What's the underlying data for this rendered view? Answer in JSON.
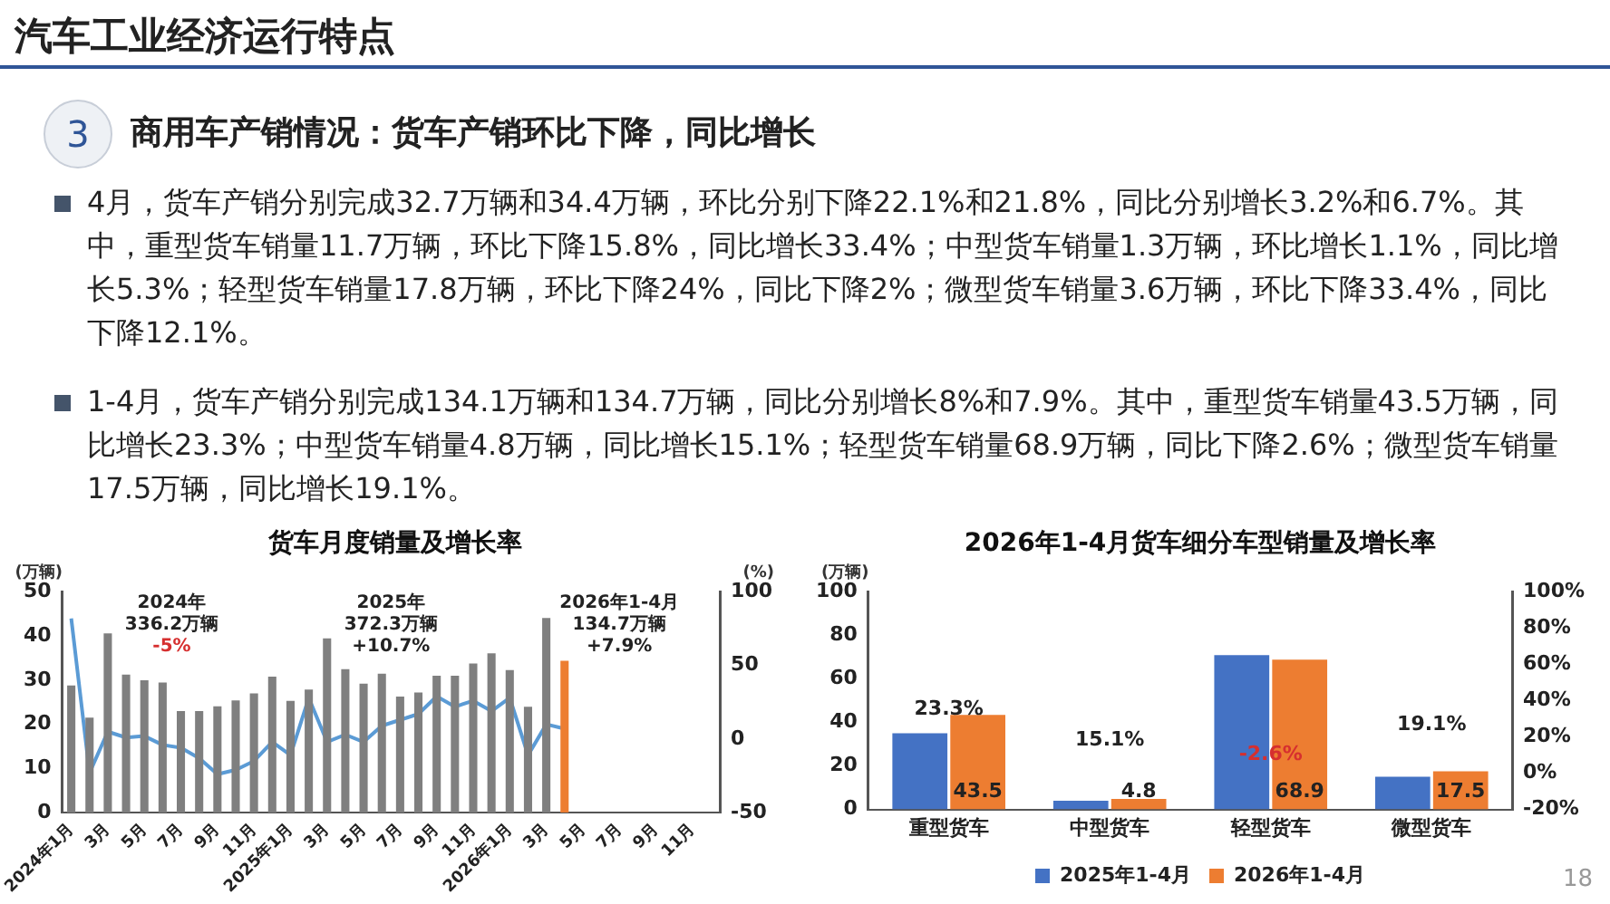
{
  "chart_data": [
    {
      "type": "other",
      "title": "汽车工业经济运行特点",
      "subtitle": "商用车产销情况：货车产销环比下降，同比增长",
      "annotations": [
        "3",
        "4月，货车产销分别完成32.7万辆和34.4万辆，环比分别下降22.1%和21.8%，同比分别增长3.2%和6.7%。其中，重型货车销量11.7万辆，环比下降15.8%，同比增长33.4%；中型货车销量1.3万辆，环比增长1.1%，同比增长5.3%；轻型货车销量17.8万辆，环比下降24%，同比下降2%；微型货车销量3.6万辆，环比下降33.4%，同比下降12.1%。",
        "1-4月，货车产销分别完成134.1万辆和134.7万辆，同比分别增长8%和7.9%。其中，重型货车销量43.5万辆，同比增长23.3%；中型货车销量4.8万辆，同比增长15.1%；轻型货车销量68.9万辆，同比下降2.6%；微型货车销量17.5万辆，同比增长19.1%。",
        "18"
      ]
    },
    {
      "type": "bar",
      "title": "货车月度销量及增长率",
      "ylabel": "(万辆)",
      "y2label": "(%)",
      "categories": [
        "2024年1月",
        null,
        "3月",
        null,
        "5月",
        null,
        "7月",
        null,
        "9月",
        null,
        "11月",
        null,
        "2025年1月",
        null,
        "3月",
        null,
        "5月",
        null,
        "7月",
        null,
        "9月",
        null,
        "11月",
        null,
        "2026年1月",
        null,
        "3月",
        null,
        "5月",
        null,
        "7月",
        null,
        "9月",
        null,
        "11月",
        null
      ],
      "series": [
        {
          "type": "bar",
          "colors": [
            "#7f7f7f",
            "#7f7f7f",
            "#7f7f7f",
            "#7f7f7f",
            "#7f7f7f",
            "#7f7f7f",
            "#7f7f7f",
            "#7f7f7f",
            "#7f7f7f",
            "#7f7f7f",
            "#7f7f7f",
            "#7f7f7f",
            "#7f7f7f",
            "#7f7f7f",
            "#7f7f7f",
            "#7f7f7f",
            "#7f7f7f",
            "#7f7f7f",
            "#7f7f7f",
            "#7f7f7f",
            "#7f7f7f",
            "#7f7f7f",
            "#7f7f7f",
            "#7f7f7f",
            "#7f7f7f",
            "#7f7f7f",
            "#7f7f7f",
            "#ed7d31",
            "#7f7f7f",
            "#7f7f7f",
            "#7f7f7f",
            "#7f7f7f",
            "#7f7f7f",
            "#7f7f7f",
            "#7f7f7f",
            "#7f7f7f"
          ],
          "values": [
            28.8,
            21.5,
            40.6,
            31.3,
            30,
            29.5,
            23,
            23,
            24.1,
            25.4,
            27,
            30.8,
            25.3,
            27.9,
            39.5,
            32.5,
            29.2,
            31.5,
            26.3,
            27.2,
            31,
            31,
            33.8,
            36.1,
            32.3,
            24,
            44.1,
            34.4,
            null,
            null,
            null,
            null,
            null,
            null,
            null,
            null
          ]
        },
        {
          "type": "line",
          "axis": "y2",
          "color": "#5b9bd5",
          "values": [
            82,
            -23,
            5,
            1,
            2,
            -4,
            -6,
            -13,
            -24,
            -21,
            -15,
            -2,
            -11,
            28,
            -2,
            3,
            -2,
            9,
            13,
            17,
            29,
            22,
            26,
            19,
            28,
            -11,
            10,
            7,
            null,
            null,
            null,
            null,
            null,
            null,
            null,
            null
          ]
        }
      ],
      "ylim": [
        0,
        50
      ],
      "yticks": [
        0,
        10,
        20,
        30,
        40,
        50
      ],
      "y2lim": [
        -50,
        100
      ],
      "y2ticks": [
        -50,
        0,
        50,
        100
      ],
      "annotations": [
        "2024年",
        "336.2万辆",
        "-5%",
        "2025年",
        "372.3万辆",
        "+10.7%",
        "2026年1-4月",
        "134.7万辆",
        "+7.9%"
      ]
    },
    {
      "type": "bar",
      "title": "2026年1-4月货车细分车型销量及增长率",
      "ylabel": "(万辆)",
      "categories": [
        "重型货车",
        "中型货车",
        "轻型货车",
        "微型货车"
      ],
      "series": [
        {
          "name": "2025年1-4月",
          "color": "#4472c4",
          "values": [
            35,
            4,
            71,
            15
          ]
        },
        {
          "name": "2026年1-4月",
          "color": "#ed7d31",
          "values": [
            43.5,
            4.8,
            68.9,
            17.5
          ],
          "value_labels": [
            "43.5",
            "4.8",
            "68.9",
            "17.5"
          ]
        }
      ],
      "ylim": [
        0,
        100
      ],
      "yticks": [
        0,
        20,
        40,
        60,
        80,
        100
      ],
      "y2lim": [
        -20,
        100
      ],
      "y2ticks": [
        {
          "value": -20,
          "label": "-20%"
        },
        {
          "value": 0,
          "label": "0%"
        },
        {
          "value": 20,
          "label": "20%"
        },
        {
          "value": 40,
          "label": "40%"
        },
        {
          "value": 60,
          "label": "60%"
        },
        {
          "value": 80,
          "label": "80%"
        },
        {
          "value": 100,
          "label": "100%"
        }
      ],
      "legend": "bottom",
      "annotations": [
        "23.3%",
        "15.1%",
        "-2.6%",
        "19.1%"
      ]
    }
  ]
}
